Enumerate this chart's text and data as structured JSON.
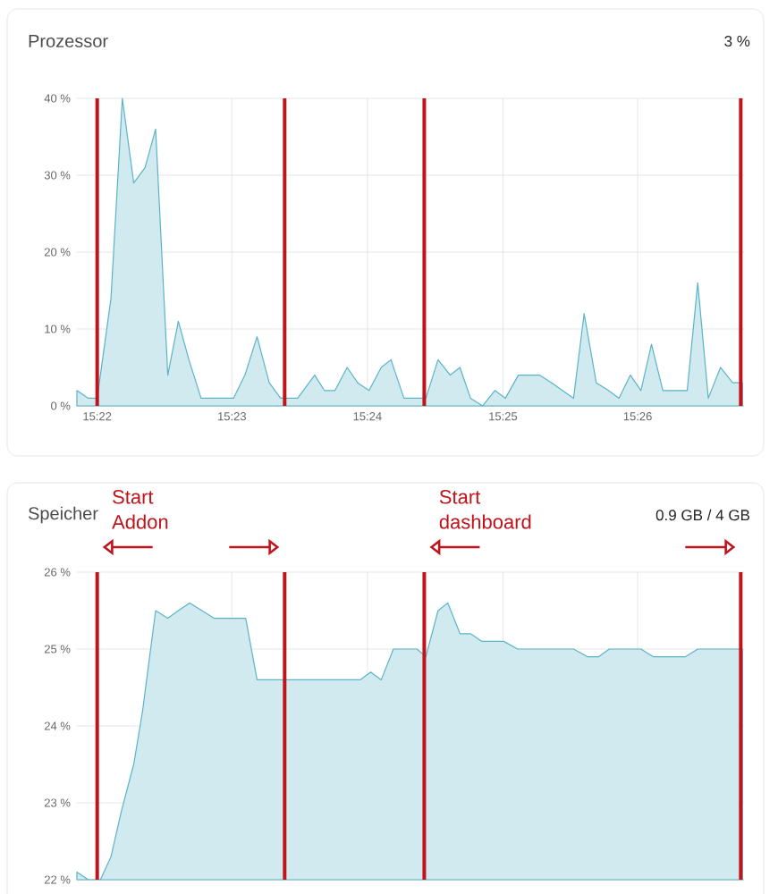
{
  "chart_data": [
    {
      "type": "area",
      "title": "Prozessor",
      "subtitle": "3 %",
      "grid": true,
      "line_style": "solid",
      "xlim": [
        15.3642,
        15.4464
      ],
      "ylim": [
        0,
        40
      ],
      "xticks": [
        {
          "value": 15.3667,
          "label": "15:22"
        },
        {
          "value": 15.3833,
          "label": "15:23"
        },
        {
          "value": 15.4,
          "label": "15:24"
        },
        {
          "value": 15.4167,
          "label": "15:25"
        },
        {
          "value": 15.4333,
          "label": "15:26"
        }
      ],
      "yticks": [
        {
          "value": 0,
          "label": "0 %"
        },
        {
          "value": 10,
          "label": "10 %"
        },
        {
          "value": 20,
          "label": "20 %"
        },
        {
          "value": 30,
          "label": "30 %"
        },
        {
          "value": 40,
          "label": "40 %"
        }
      ],
      "ref_lines": [
        {
          "axis": "x",
          "value": 15.3667,
          "color": "#c0141c"
        },
        {
          "axis": "x",
          "value": 15.3898,
          "color": "#c0141c"
        },
        {
          "axis": "x",
          "value": 15.407,
          "color": "#c0141c"
        },
        {
          "axis": "x",
          "value": 15.446,
          "color": "#c0141c"
        }
      ],
      "series": [
        {
          "color": "#5ab4c6",
          "x": [
            15.3642,
            15.3656,
            15.3667,
            15.3684,
            15.3698,
            15.3712,
            15.3726,
            15.3739,
            15.3754,
            15.3767,
            15.378,
            15.3795,
            15.3811,
            15.3835,
            15.3849,
            15.3864,
            15.3879,
            15.3893,
            15.3914,
            15.3935,
            15.3947,
            15.396,
            15.3975,
            15.3988,
            15.4002,
            15.4017,
            15.4029,
            15.4045,
            15.4061,
            15.4072,
            15.4087,
            15.4102,
            15.4114,
            15.4127,
            15.4142,
            15.4157,
            15.417,
            15.4186,
            15.4212,
            15.4227,
            15.4254,
            15.4267,
            15.4282,
            15.4297,
            15.431,
            15.4324,
            15.4337,
            15.435,
            15.4364,
            15.4381,
            15.4394,
            15.4407,
            15.442,
            15.4435,
            15.445,
            15.4462
          ],
          "values": [
            2,
            1,
            1,
            14,
            40,
            29,
            31,
            36,
            4,
            11,
            6,
            1,
            1,
            1,
            4,
            9,
            3,
            1,
            1,
            4,
            2,
            2,
            5,
            3,
            2,
            5,
            6,
            1,
            1,
            1,
            6,
            4,
            5,
            1,
            0,
            2,
            1,
            4,
            4,
            3,
            1,
            12,
            3,
            2,
            1,
            4,
            2,
            8,
            2,
            2,
            2,
            16,
            1,
            5,
            3,
            3
          ]
        }
      ]
    },
    {
      "type": "area",
      "title": "Speicher",
      "subtitle": "0.9 GB / 4 GB",
      "grid": true,
      "line_style": "solid",
      "tick_labels": "y",
      "xlim": [
        15.3642,
        15.4464
      ],
      "ylim": [
        22,
        26
      ],
      "xticks": [
        {
          "value": 15.3667,
          "label": null
        },
        {
          "value": 15.3833,
          "label": null
        },
        {
          "value": 15.4,
          "label": null
        },
        {
          "value": 15.4167,
          "label": null
        },
        {
          "value": 15.4333,
          "label": null
        }
      ],
      "yticks": [
        {
          "value": 22,
          "label": "22 %"
        },
        {
          "value": 23,
          "label": "23 %"
        },
        {
          "value": 24,
          "label": "24 %"
        },
        {
          "value": 25,
          "label": "25 %"
        },
        {
          "value": 26,
          "label": "26 %"
        }
      ],
      "ref_lines": [
        {
          "axis": "x",
          "value": 15.3667,
          "color": "#c0141c"
        },
        {
          "axis": "x",
          "value": 15.3898,
          "color": "#c0141c"
        },
        {
          "axis": "x",
          "value": 15.407,
          "color": "#c0141c"
        },
        {
          "axis": "x",
          "value": 15.446,
          "color": "#c0141c"
        }
      ],
      "annotations": [
        "Start Addon",
        "Start dashboard"
      ],
      "series": [
        {
          "color": "#5ab4c6",
          "x": [
            15.3642,
            15.3656,
            15.3671,
            15.3684,
            15.3697,
            15.3712,
            15.3723,
            15.3739,
            15.3754,
            15.3767,
            15.3781,
            15.3796,
            15.3811,
            15.3837,
            15.385,
            15.3864,
            15.3874,
            15.3991,
            15.4004,
            15.4017,
            15.4032,
            15.4061,
            15.4072,
            15.4087,
            15.4099,
            15.4114,
            15.4127,
            15.4141,
            15.4168,
            15.4185,
            15.4254,
            15.4271,
            15.4285,
            15.4298,
            15.4337,
            15.4352,
            15.4392,
            15.4407,
            15.4462
          ],
          "values": [
            22.1,
            22.0,
            22.0,
            22.3,
            22.9,
            23.5,
            24.2,
            25.5,
            25.4,
            25.5,
            25.6,
            25.5,
            25.4,
            25.4,
            25.4,
            24.6,
            24.6,
            24.6,
            24.7,
            24.6,
            25.0,
            25.0,
            24.9,
            25.5,
            25.6,
            25.2,
            25.2,
            25.1,
            25.1,
            25.0,
            25.0,
            24.9,
            24.9,
            25.0,
            25.0,
            24.9,
            24.9,
            25.0,
            25.0
          ]
        }
      ]
    }
  ]
}
